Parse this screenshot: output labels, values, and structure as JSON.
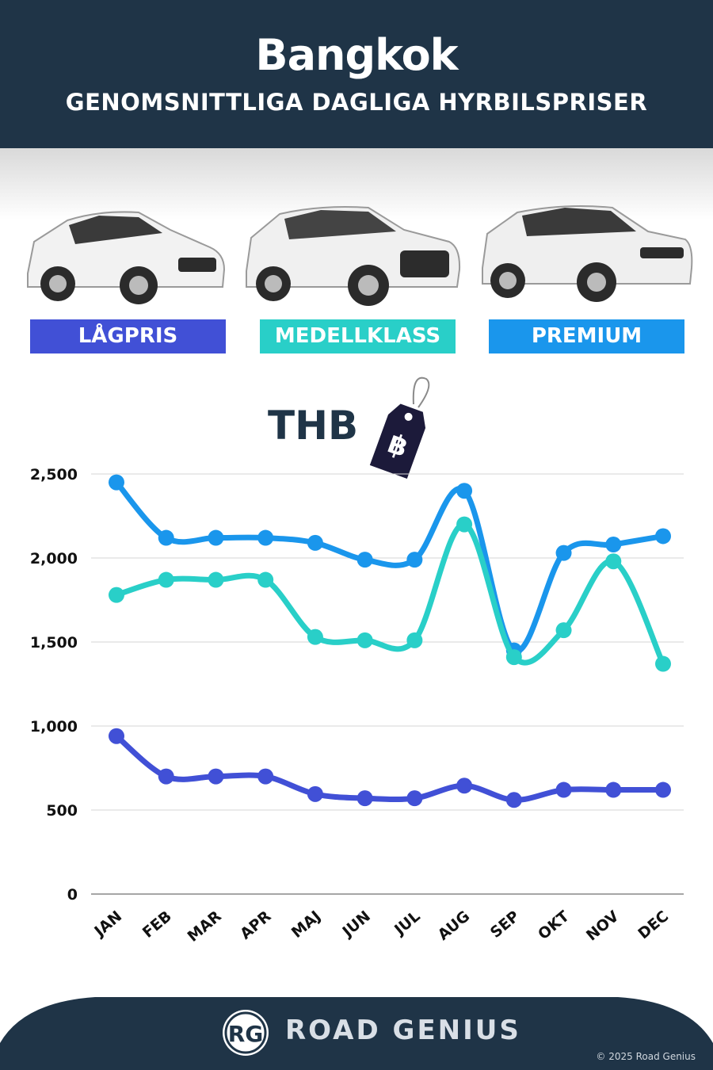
{
  "header": {
    "title": "Bangkok",
    "subtitle": "GENOMSNITTLIGA DAGLIGA HYRBILSPRISER"
  },
  "categories": [
    {
      "label": "LÅGPRIS",
      "color": "#4150d6"
    },
    {
      "label": "MEDELLKLASS",
      "color": "#29cfc8"
    },
    {
      "label": "PREMIUM",
      "color": "#1a96ec"
    }
  ],
  "currency": {
    "label": "THB",
    "symbol": "฿"
  },
  "chart_data": {
    "type": "line",
    "categories": [
      "JAN",
      "FEB",
      "MAR",
      "APR",
      "MAJ",
      "JUN",
      "JUL",
      "AUG",
      "SEP",
      "OKT",
      "NOV",
      "DEC"
    ],
    "series": [
      {
        "name": "PREMIUM",
        "color": "#1a96ec",
        "values": [
          2450,
          2120,
          2120,
          2120,
          2090,
          1990,
          1990,
          2400,
          1450,
          2030,
          2080,
          2130
        ]
      },
      {
        "name": "MEDELLKLASS",
        "color": "#29cfc8",
        "values": [
          1780,
          1870,
          1870,
          1870,
          1530,
          1510,
          1510,
          2200,
          1410,
          1570,
          1980,
          1370
        ]
      },
      {
        "name": "LÅGPRIS",
        "color": "#4150d6",
        "values": [
          940,
          700,
          700,
          700,
          595,
          570,
          570,
          645,
          560,
          620,
          620,
          620
        ]
      }
    ],
    "ylim": [
      0,
      2500
    ],
    "yticks": [
      "0",
      "500",
      "1,000",
      "1,500",
      "2,000",
      "2,500"
    ],
    "ytick_values": [
      0,
      500,
      1000,
      1500,
      2000,
      2500
    ],
    "grid": true
  },
  "footer": {
    "logo_text": "RG",
    "brand": "ROAD GENIUS",
    "copyright": "© 2025 Road Genius"
  }
}
